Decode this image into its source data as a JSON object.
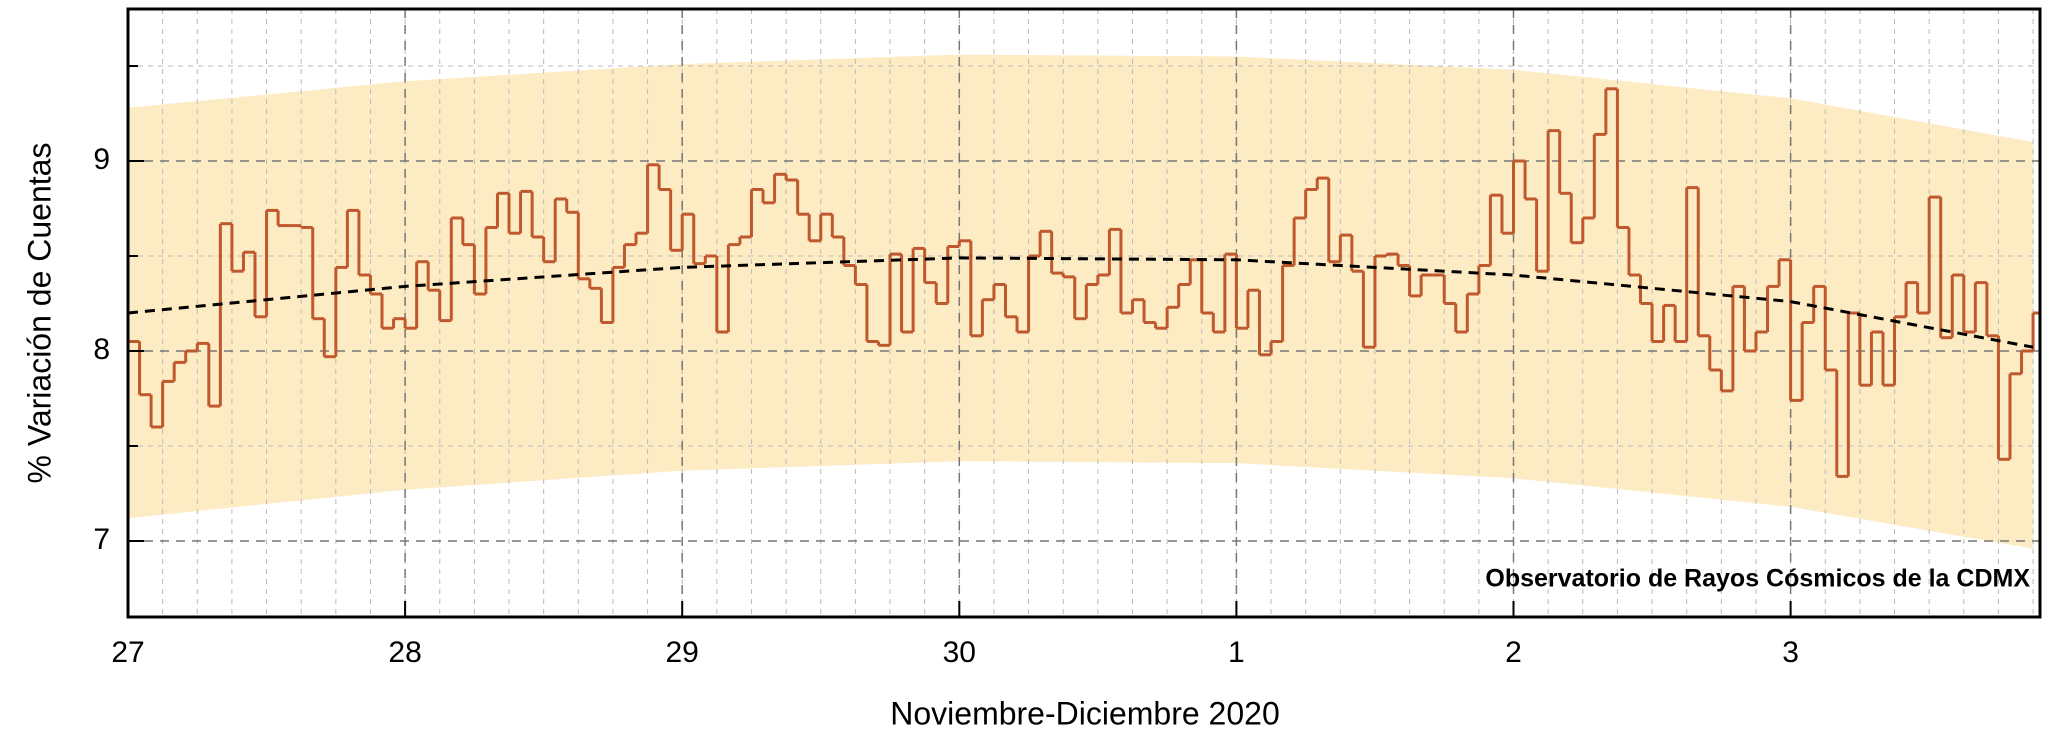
{
  "chart_data": {
    "type": "step",
    "xlabel": "Noviembre-Diciembre 2020",
    "ylabel": "% Variación de Cuentas",
    "annotation": "Observatorio de Rayos Cósmicos de la CDMX",
    "xlim": [
      0,
      165.6
    ],
    "ylim": [
      6.6,
      9.8
    ],
    "xticks": [
      {
        "value": 0,
        "label": "27"
      },
      {
        "value": 24,
        "label": "28"
      },
      {
        "value": 48,
        "label": "29"
      },
      {
        "value": 72,
        "label": "30"
      },
      {
        "value": 96,
        "label": "1"
      },
      {
        "value": 120,
        "label": "2"
      },
      {
        "value": 144,
        "label": "3"
      }
    ],
    "yticks": [
      7,
      8,
      9
    ],
    "yminor": [
      7.5,
      8.5,
      9.5
    ],
    "x_minor_step": 3,
    "grid": true,
    "x": [
      0,
      1,
      2,
      3,
      4,
      5,
      6,
      7,
      8,
      9,
      10,
      11,
      12,
      13,
      14,
      15,
      16,
      17,
      18,
      19,
      20,
      21,
      22,
      23,
      24,
      25,
      26,
      27,
      28,
      29,
      30,
      31,
      32,
      33,
      34,
      35,
      36,
      37,
      38,
      39,
      40,
      41,
      42,
      43,
      44,
      45,
      46,
      47,
      48,
      49,
      50,
      51,
      52,
      53,
      54,
      55,
      56,
      57,
      58,
      59,
      60,
      61,
      62,
      63,
      64,
      65,
      66,
      67,
      68,
      69,
      70,
      71,
      72,
      73,
      74,
      75,
      76,
      77,
      78,
      79,
      80,
      81,
      82,
      83,
      84,
      85,
      86,
      87,
      88,
      89,
      90,
      91,
      92,
      93,
      94,
      95,
      96,
      97,
      98,
      99,
      100,
      101,
      102,
      103,
      104,
      105,
      106,
      107,
      108,
      109,
      110,
      111,
      112,
      113,
      114,
      115,
      116,
      117,
      118,
      119,
      120,
      121,
      122,
      123,
      124,
      125,
      126,
      127,
      128,
      129,
      130,
      131,
      132,
      133,
      134,
      135,
      136,
      137,
      138,
      139,
      140,
      141,
      142,
      143,
      144,
      145,
      146,
      147,
      148,
      149,
      150,
      151,
      152,
      153,
      154,
      155,
      156,
      157,
      158,
      159,
      160,
      161,
      162,
      163,
      164,
      165
    ],
    "series": [
      {
        "color": "#c0582e",
        "values": [
          8.05,
          7.77,
          7.6,
          7.84,
          7.94,
          8.0,
          8.04,
          7.71,
          8.67,
          8.42,
          8.52,
          8.18,
          8.74,
          8.66,
          8.66,
          8.65,
          8.17,
          7.97,
          8.44,
          8.74,
          8.4,
          8.3,
          8.12,
          8.17,
          8.12,
          8.47,
          8.32,
          8.16,
          8.7,
          8.56,
          8.3,
          8.65,
          8.83,
          8.62,
          8.84,
          8.6,
          8.47,
          8.8,
          8.73,
          8.38,
          8.33,
          8.15,
          8.44,
          8.56,
          8.62,
          8.98,
          8.85,
          8.53,
          8.72,
          8.46,
          8.5,
          8.1,
          8.56,
          8.6,
          8.85,
          8.78,
          8.93,
          8.9,
          8.72,
          8.58,
          8.72,
          8.6,
          8.45,
          8.35,
          8.05,
          8.03,
          8.51,
          8.1,
          8.54,
          8.36,
          8.25,
          8.55,
          8.58,
          8.08,
          8.27,
          8.35,
          8.18,
          8.1,
          8.5,
          8.63,
          8.41,
          8.39,
          8.17,
          8.35,
          8.4,
          8.64,
          8.2,
          8.27,
          8.15,
          8.12,
          8.23,
          8.35,
          8.48,
          8.2,
          8.1,
          8.51,
          8.12,
          8.32,
          7.98,
          8.05,
          8.45,
          8.7,
          8.85,
          8.91,
          8.47,
          8.61,
          8.42,
          8.02,
          8.5,
          8.51,
          8.45,
          8.29,
          8.4,
          8.4,
          8.25,
          8.1,
          8.3,
          8.45,
          8.82,
          8.62,
          9.0,
          8.8,
          8.42,
          9.16,
          8.83,
          8.57,
          8.7,
          9.14,
          9.38,
          8.65,
          8.4,
          8.25,
          8.05,
          8.24,
          8.05,
          8.86,
          8.08,
          7.9,
          7.79,
          8.34,
          8.0,
          8.1,
          8.34,
          8.48,
          7.74,
          8.15,
          8.34,
          7.9,
          7.34,
          8.2,
          7.82,
          8.1,
          7.82,
          8.18,
          8.36,
          8.2,
          8.81,
          8.07,
          8.4,
          8.1,
          8.36,
          8.08,
          7.43,
          7.88,
          8.0,
          8.2
        ]
      }
    ],
    "fit_x": [
      0,
      24,
      48,
      72,
      96,
      120,
      144,
      165
    ],
    "fit": {
      "color": "#000000",
      "values": [
        8.2,
        8.34,
        8.44,
        8.49,
        8.48,
        8.4,
        8.26,
        8.02
      ]
    },
    "band": {
      "color": "#fdebc4",
      "lower": [
        7.12,
        7.27,
        7.37,
        7.42,
        7.41,
        7.33,
        7.18,
        6.96
      ],
      "upper": [
        9.28,
        9.42,
        9.51,
        9.56,
        9.55,
        9.48,
        9.33,
        9.1
      ]
    }
  }
}
